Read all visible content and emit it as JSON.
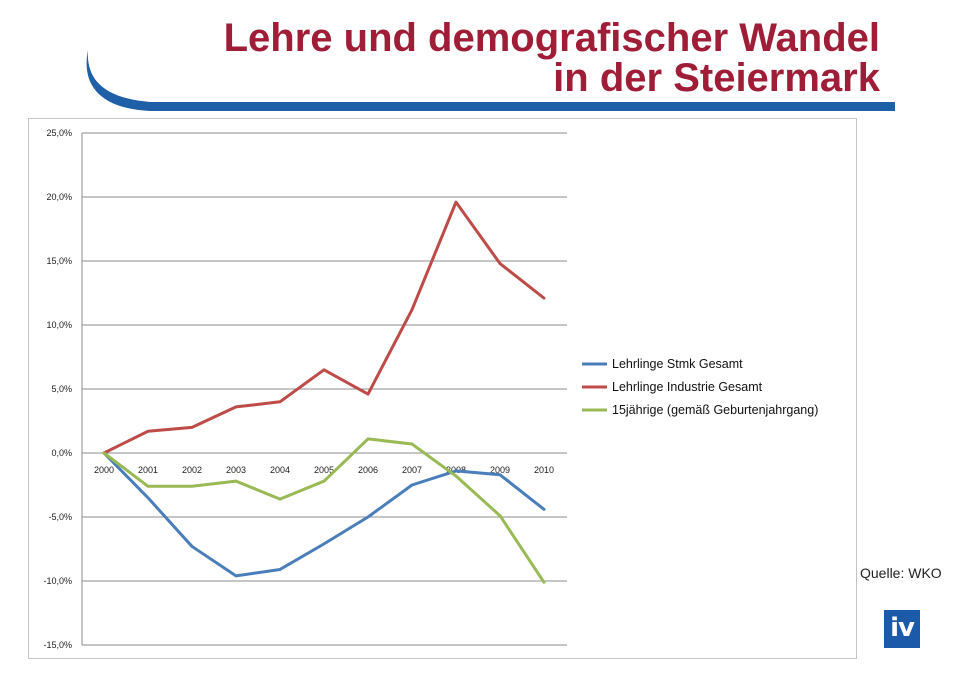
{
  "header": {
    "title_line1": "Lehre und demografischer Wandel",
    "title_line2": "in der Steiermark"
  },
  "source": "Quelle: WKO",
  "logo_text": "iv",
  "colors": {
    "title": "#a01d37",
    "swoosh": "#1f5fa8",
    "logo": "#1b5aa8"
  },
  "chart_data": {
    "type": "line",
    "categories": [
      "2000",
      "2001",
      "2002",
      "2003",
      "2004",
      "2005",
      "2006",
      "2007",
      "2008",
      "2009",
      "2010"
    ],
    "series": [
      {
        "name": "Lehrlinge Stmk Gesamt",
        "color": "#4a7ebb",
        "values": [
          0.0,
          -3.5,
          -7.3,
          -9.6,
          -9.1,
          -7.1,
          -5.0,
          -2.5,
          -1.4,
          -1.7,
          -4.4
        ]
      },
      {
        "name": "Lehrlinge Industrie Gesamt",
        "color": "#be4b48",
        "values": [
          0.0,
          1.7,
          2.0,
          3.6,
          4.0,
          6.5,
          4.6,
          11.2,
          19.6,
          14.8,
          12.1
        ]
      },
      {
        "name": "15jährige (gemäß Geburtenjahrgang)",
        "color": "#98b954",
        "values": [
          0.0,
          -2.6,
          -2.6,
          -2.2,
          -3.6,
          -2.2,
          1.1,
          0.7,
          -1.8,
          -4.9,
          -10.1
        ]
      }
    ],
    "yticks": [
      "25,0%",
      "20,0%",
      "15,0%",
      "10,0%",
      "5,0%",
      "0,0%",
      "-5,0%",
      "-10,0%",
      "-15,0%"
    ],
    "ylim": [
      -15,
      25
    ],
    "ystep": 5,
    "grid": true,
    "legend": "right"
  }
}
